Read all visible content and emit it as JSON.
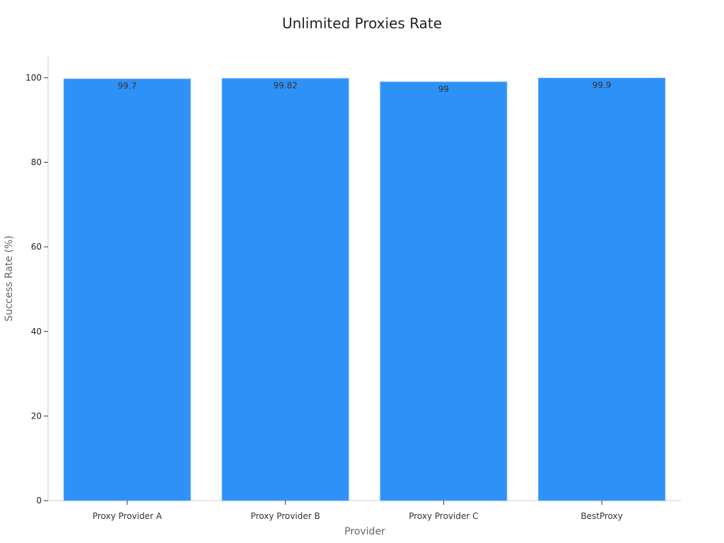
{
  "chart_data": {
    "type": "bar",
    "title": "Unlimited Proxies Rate",
    "xlabel": "Provider",
    "ylabel": "Success Rate (%)",
    "categories": [
      "Proxy Provider A",
      "Proxy Provider B",
      "Proxy Provider C",
      "BestProxy"
    ],
    "values": [
      99.7,
      99.82,
      99,
      99.9
    ],
    "data_labels": [
      "99.7",
      "99.82",
      "99",
      "99.9"
    ],
    "ylim": [
      0,
      105
    ],
    "yticks": [
      0,
      20,
      40,
      60,
      80,
      100
    ],
    "grid": false,
    "bar_color": "#2e91f8"
  }
}
